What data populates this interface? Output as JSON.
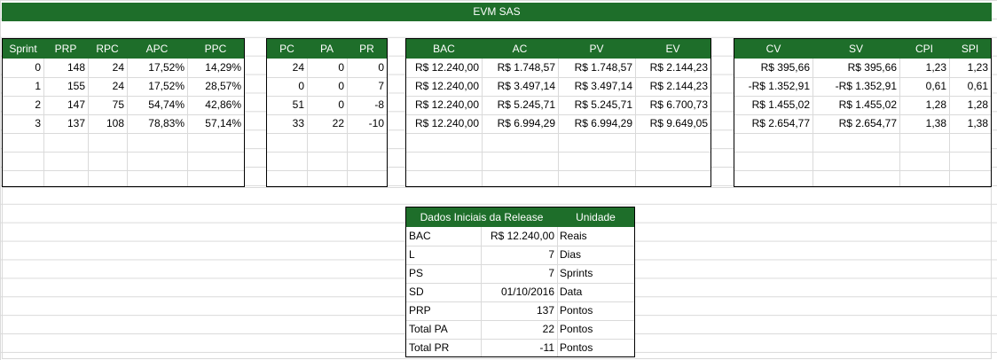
{
  "title": "EVM SAS",
  "block1": {
    "headers": [
      "Sprint",
      "PRP",
      "RPC",
      "APC",
      "PPC"
    ],
    "rows": [
      [
        "0",
        "148",
        "24",
        "17,52%",
        "14,29%"
      ],
      [
        "1",
        "155",
        "24",
        "17,52%",
        "28,57%"
      ],
      [
        "2",
        "147",
        "75",
        "54,74%",
        "42,86%"
      ],
      [
        "3",
        "137",
        "108",
        "78,83%",
        "57,14%"
      ]
    ]
  },
  "block2": {
    "headers": [
      "PC",
      "PA",
      "PR"
    ],
    "rows": [
      [
        "24",
        "0",
        "0"
      ],
      [
        "0",
        "0",
        "7"
      ],
      [
        "51",
        "0",
        "-8"
      ],
      [
        "33",
        "22",
        "-10"
      ]
    ]
  },
  "block3": {
    "headers": [
      "BAC",
      "AC",
      "PV",
      "EV"
    ],
    "rows": [
      [
        "R$ 12.240,00",
        "R$ 1.748,57",
        "R$ 1.748,57",
        "R$ 2.144,23"
      ],
      [
        "R$ 12.240,00",
        "R$ 3.497,14",
        "R$ 3.497,14",
        "R$ 2.144,23"
      ],
      [
        "R$ 12.240,00",
        "R$ 5.245,71",
        "R$ 5.245,71",
        "R$ 6.700,73"
      ],
      [
        "R$ 12.240,00",
        "R$ 6.994,29",
        "R$ 6.994,29",
        "R$ 9.649,05"
      ]
    ]
  },
  "block4": {
    "headers": [
      "CV",
      "SV",
      "CPI",
      "SPI"
    ],
    "rows": [
      [
        "R$ 395,66",
        "R$ 395,66",
        "1,23",
        "1,23"
      ],
      [
        "-R$ 1.352,91",
        "-R$ 1.352,91",
        "0,61",
        "0,61"
      ],
      [
        "R$ 1.455,02",
        "R$ 1.455,02",
        "1,28",
        "1,28"
      ],
      [
        "R$ 2.654,77",
        "R$ 2.654,77",
        "1,38",
        "1,38"
      ]
    ]
  },
  "dados": {
    "headers": [
      "Dados Iniciais da Release",
      "Unidade"
    ],
    "rows": [
      [
        "BAC",
        "R$ 12.240,00",
        "Reais"
      ],
      [
        "L",
        "7",
        "Dias"
      ],
      [
        "PS",
        "7",
        "Sprints"
      ],
      [
        "SD",
        "01/10/2016",
        "Data"
      ],
      [
        "PRP",
        "137",
        "Pontos"
      ],
      [
        "Total PA",
        "22",
        "Pontos"
      ],
      [
        "Total PR",
        "-11",
        "Pontos"
      ]
    ]
  }
}
